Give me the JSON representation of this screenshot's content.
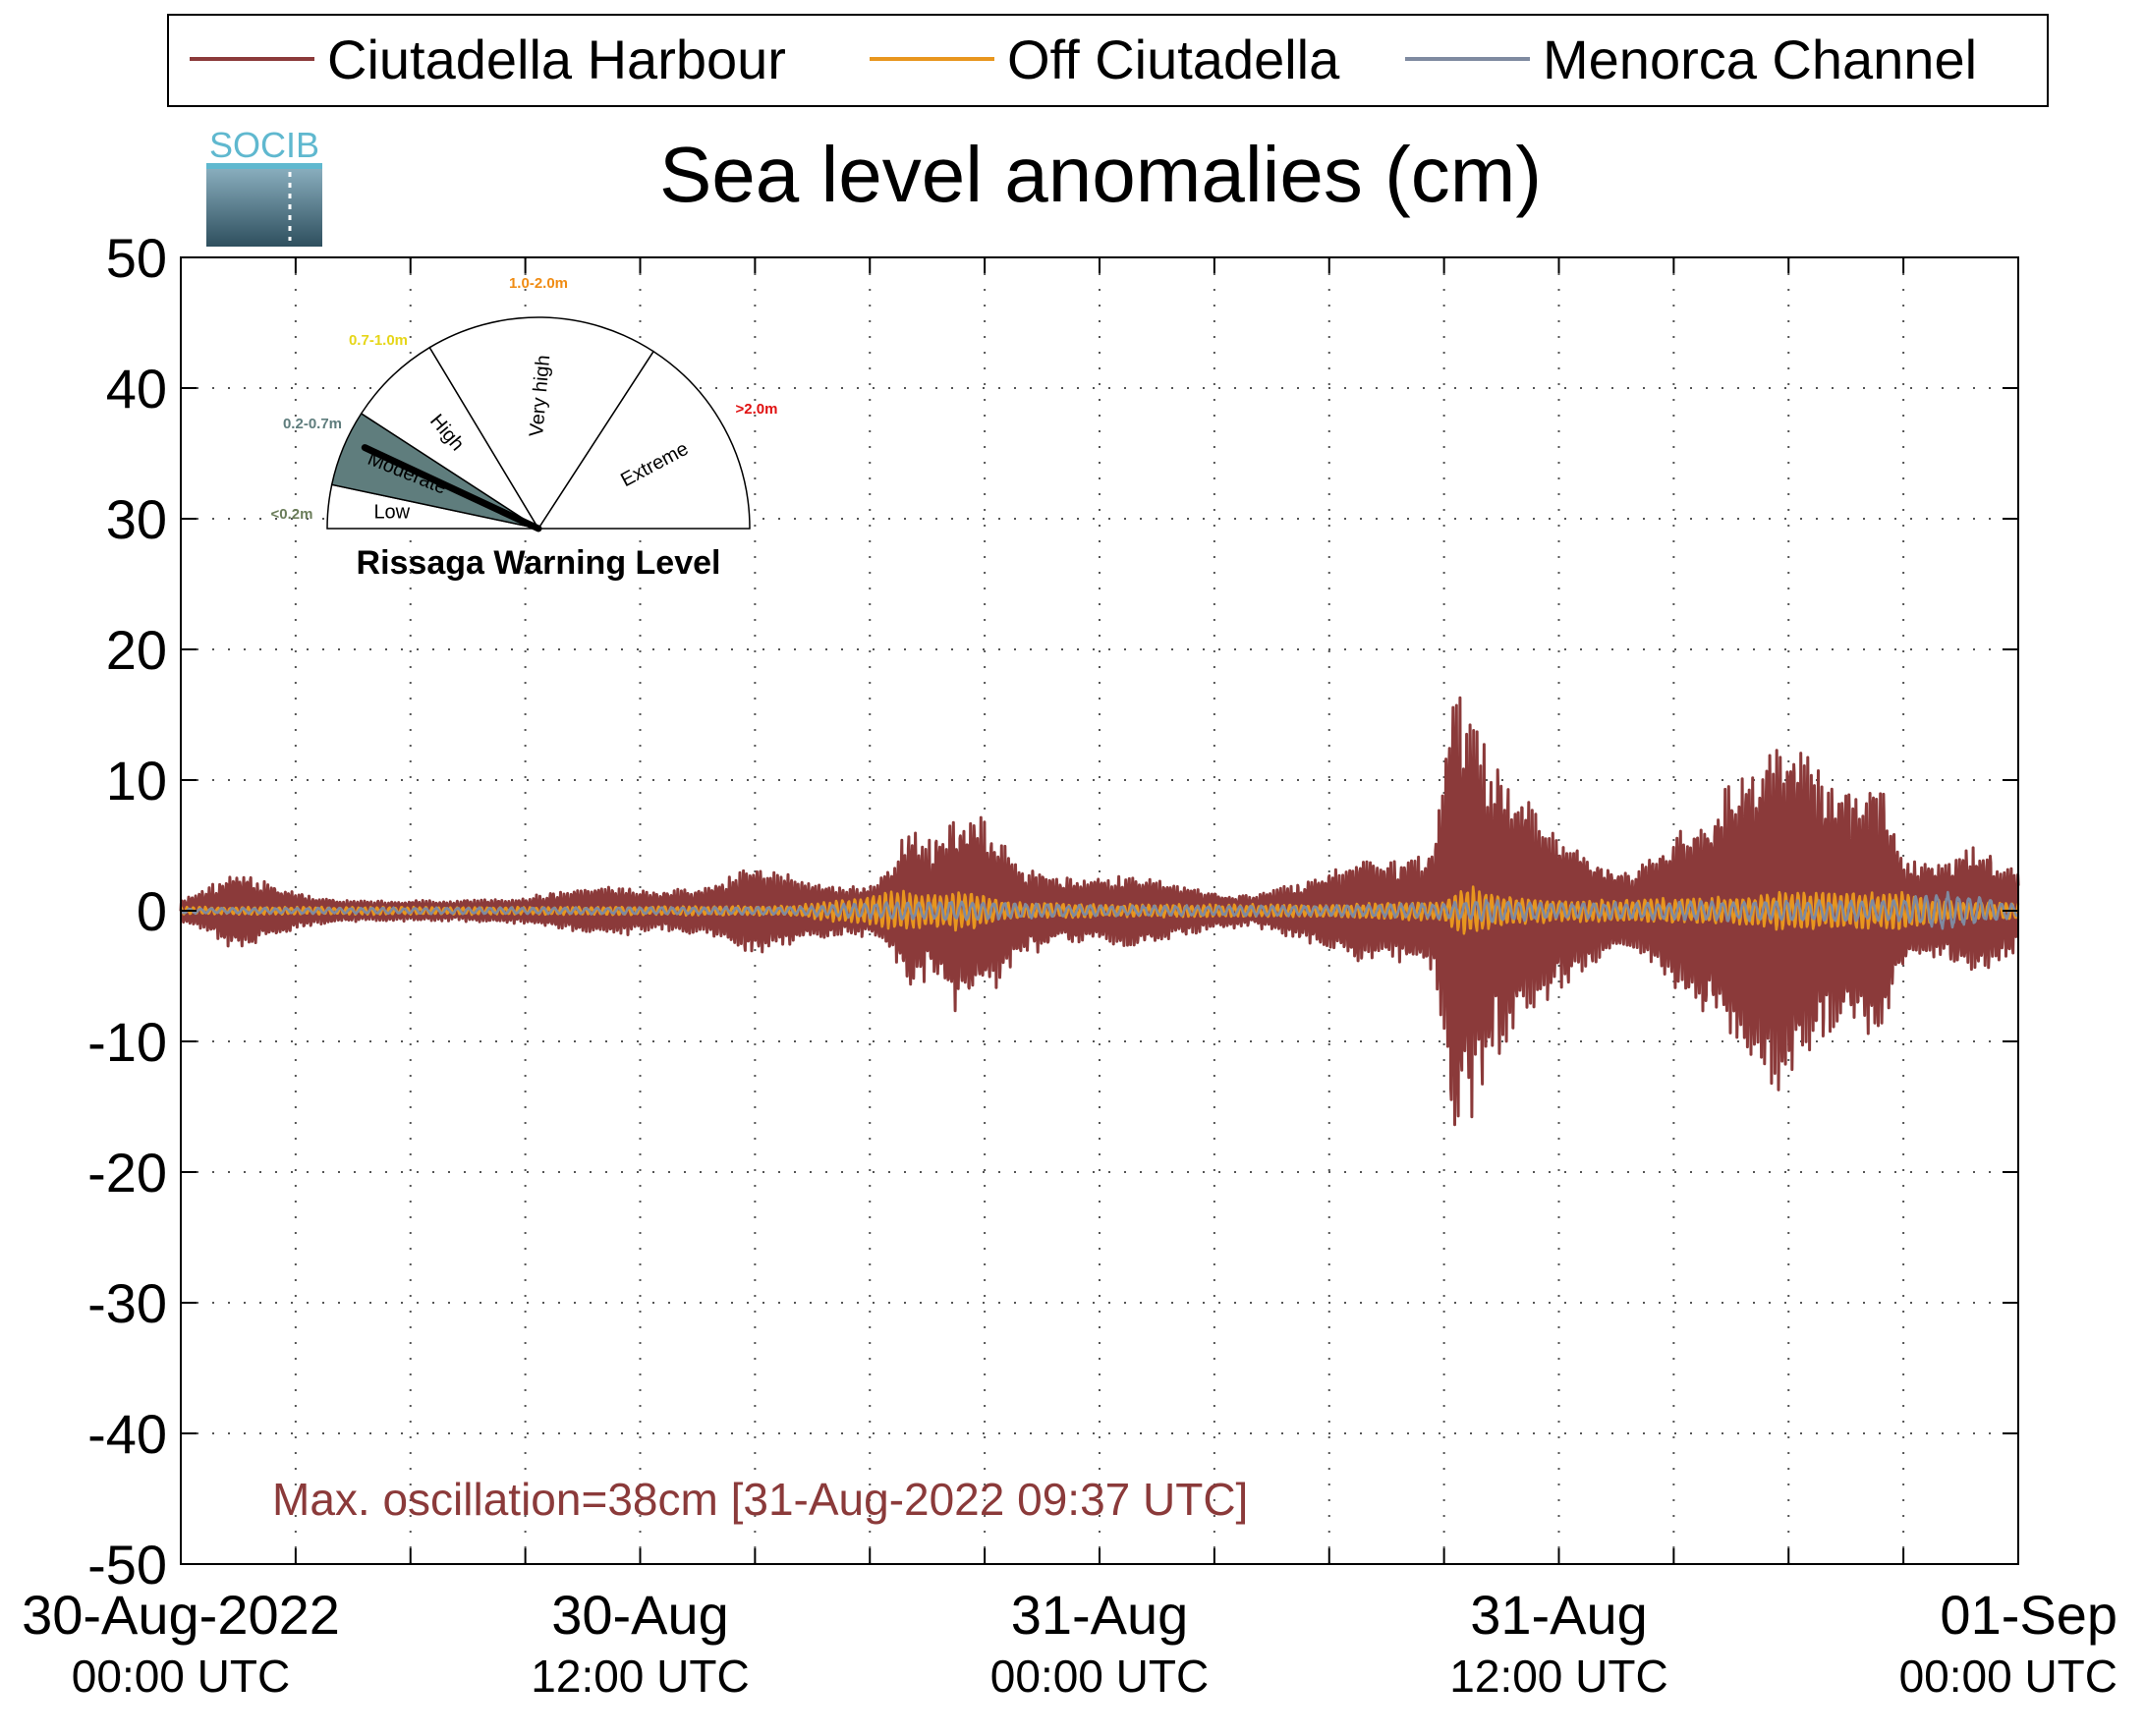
{
  "legend": {
    "items": [
      {
        "label": "Ciutadella Harbour",
        "color": "#8b3a3a"
      },
      {
        "label": "Off Ciutadella",
        "color": "#e8961e"
      },
      {
        "label": "Menorca Channel",
        "color": "#7f8aa0"
      }
    ]
  },
  "logo": {
    "text": "SOCIB"
  },
  "warning_gauge": {
    "title": "Rissaga Warning Level",
    "current_level": "Moderate",
    "sectors": [
      {
        "label": "Low",
        "range": "<0.2m",
        "range_color": "#6b7d5a",
        "active": false
      },
      {
        "label": "Moderate",
        "range": "0.2-0.7m",
        "range_color": "#5f7d7d",
        "active": true
      },
      {
        "label": "High",
        "range": "0.7-1.0m",
        "range_color": "#e6d619",
        "active": false
      },
      {
        "label": "Very high",
        "range": "1.0-2.0m",
        "range_color": "#f08c14",
        "active": false
      },
      {
        "label": "Extreme",
        "range": ">2.0m",
        "range_color": "#e01010",
        "active": false
      }
    ]
  },
  "annotation": {
    "text": "Max. oscillation=38cm [31-Aug-2022 09:37 UTC]",
    "color": "#8b3a3a"
  },
  "chart_data": {
    "type": "line",
    "title": "Sea level anomalies (cm)",
    "xlabel": "",
    "ylabel": "",
    "ylim": [
      -50,
      50
    ],
    "yticks": [
      -50,
      -40,
      -30,
      -20,
      -10,
      0,
      10,
      20,
      30,
      40,
      50
    ],
    "xlim_hours": [
      0,
      48
    ],
    "grid": true,
    "legend_position": "top",
    "xticks": [
      {
        "hour": 0,
        "line1": "30-Aug-2022",
        "line2": "00:00 UTC"
      },
      {
        "hour": 12,
        "line1": "30-Aug",
        "line2": "12:00 UTC"
      },
      {
        "hour": 24,
        "line1": "31-Aug",
        "line2": "00:00 UTC"
      },
      {
        "hour": 36,
        "line1": "31-Aug",
        "line2": "12:00 UTC"
      },
      {
        "hour": 48,
        "line1": "01-Sep",
        "line2": "00:00 UTC"
      }
    ],
    "series": [
      {
        "name": "Ciutadella Harbour",
        "color": "#8b3a3a",
        "amplitude_envelope": {
          "hours": [
            0,
            0.5,
            1.5,
            2.5,
            3.5,
            5,
            7,
            9,
            10,
            11,
            12.5,
            14,
            14.9,
            15.5,
            17,
            18,
            18.6,
            19,
            19.5,
            20.2,
            21,
            22,
            23,
            24,
            25,
            26,
            27,
            28,
            29,
            30,
            31,
            32,
            32.7,
            33,
            33.2,
            33.6,
            34.2,
            35,
            36,
            37,
            38,
            39,
            40,
            41,
            42,
            43,
            44,
            44.5,
            45,
            46,
            47,
            48
          ],
          "values": [
            0.8,
            1.5,
            3,
            2,
            1,
            0.8,
            0.8,
            1,
            1.5,
            2,
            1.5,
            2,
            3.5,
            3,
            2,
            2,
            3.5,
            6.5,
            5,
            7.5,
            7,
            3.5,
            2.5,
            2.5,
            3,
            2,
            1.5,
            1.2,
            2,
            3,
            4,
            4,
            4.5,
            10,
            18.5,
            16,
            12,
            9,
            6,
            4,
            3,
            6,
            8,
            12,
            14,
            10,
            9,
            10,
            4,
            4,
            5,
            3
          ]
        }
      },
      {
        "name": "Off Ciutadella",
        "color": "#e8961e",
        "amplitude_envelope": {
          "hours": [
            0,
            10,
            16,
            17.5,
            18.5,
            19.5,
            20.5,
            21.5,
            24,
            30,
            33,
            33.5,
            34.5,
            36,
            40,
            42,
            43,
            45,
            46,
            48
          ],
          "values": [
            0.3,
            0.3,
            0.4,
            1,
            1.6,
            1.4,
            1.6,
            0.7,
            0.5,
            0.5,
            0.8,
            2,
            1.2,
            0.8,
            1,
            1.5,
            1.5,
            1.5,
            0.8,
            0.6
          ]
        }
      },
      {
        "name": "Menorca Channel",
        "color": "#7f8aa0",
        "amplitude_envelope": {
          "hours": [
            0,
            16,
            18,
            20,
            24,
            30,
            33,
            34,
            36,
            42,
            44,
            45,
            46,
            48
          ],
          "values": [
            0.2,
            0.3,
            0.6,
            0.8,
            0.4,
            0.4,
            0.6,
            0.9,
            0.6,
            0.8,
            0.8,
            0.9,
            1.5,
            0.5
          ]
        }
      }
    ]
  }
}
